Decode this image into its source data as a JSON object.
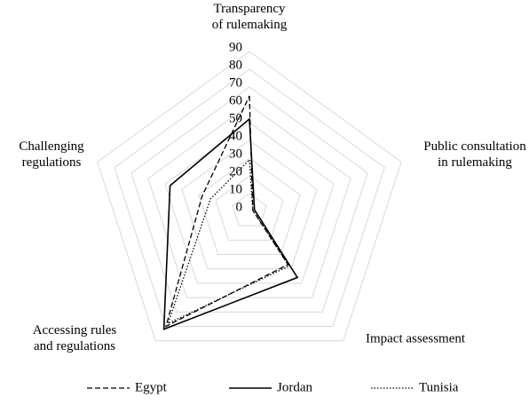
{
  "chart_data": {
    "type": "radar",
    "categories": [
      "Transparency\nof rulemaking",
      "Public consultation\nin rulemaking",
      "Impact assessment",
      "Accessing rules\nand regulations",
      "Challenging\nregulations"
    ],
    "series": [
      {
        "name": "Egypt",
        "color": "#000000",
        "dash": "dashed",
        "values": [
          65,
          2,
          37,
          80,
          28
        ]
      },
      {
        "name": "Jordan",
        "color": "#000000",
        "dash": "solid",
        "values": [
          52,
          3,
          46,
          82,
          47
        ]
      },
      {
        "name": "Tunisia",
        "color": "#000000",
        "dash": "dotted",
        "values": [
          29,
          2,
          38,
          78,
          23
        ]
      }
    ],
    "rlim": [
      0,
      90
    ],
    "rticks": [
      0,
      10,
      20,
      30,
      40,
      50,
      60,
      70,
      80,
      90
    ],
    "grid": true,
    "legend": "bottom"
  }
}
